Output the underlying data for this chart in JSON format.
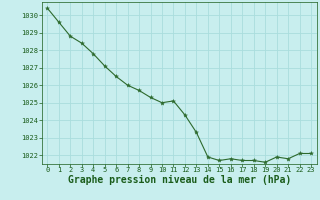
{
  "x": [
    0,
    1,
    2,
    3,
    4,
    5,
    6,
    7,
    8,
    9,
    10,
    11,
    12,
    13,
    14,
    15,
    16,
    17,
    18,
    19,
    20,
    21,
    22,
    23
  ],
  "y": [
    1030.4,
    1029.6,
    1028.8,
    1028.4,
    1027.8,
    1027.1,
    1026.5,
    1026.0,
    1025.7,
    1025.3,
    1025.0,
    1025.1,
    1024.3,
    1023.3,
    1021.9,
    1021.7,
    1021.8,
    1021.7,
    1021.7,
    1021.6,
    1021.9,
    1021.8,
    1022.1,
    1022.1
  ],
  "line_color": "#2d6a2d",
  "marker": "*",
  "marker_size": 3.0,
  "bg_color": "#c8eeee",
  "grid_color": "#aadddd",
  "xlabel": "Graphe pression niveau de la mer (hPa)",
  "xlabel_color": "#1a5c1a",
  "tick_color": "#1a5c1a",
  "ylim": [
    1021.5,
    1030.75
  ],
  "xlim": [
    -0.5,
    23.5
  ],
  "yticks": [
    1022,
    1023,
    1024,
    1025,
    1026,
    1027,
    1028,
    1029,
    1030
  ],
  "xticks": [
    0,
    1,
    2,
    3,
    4,
    5,
    6,
    7,
    8,
    9,
    10,
    11,
    12,
    13,
    14,
    15,
    16,
    17,
    18,
    19,
    20,
    21,
    22,
    23
  ],
  "tick_fontsize": 5.0,
  "xlabel_fontsize": 7.0
}
